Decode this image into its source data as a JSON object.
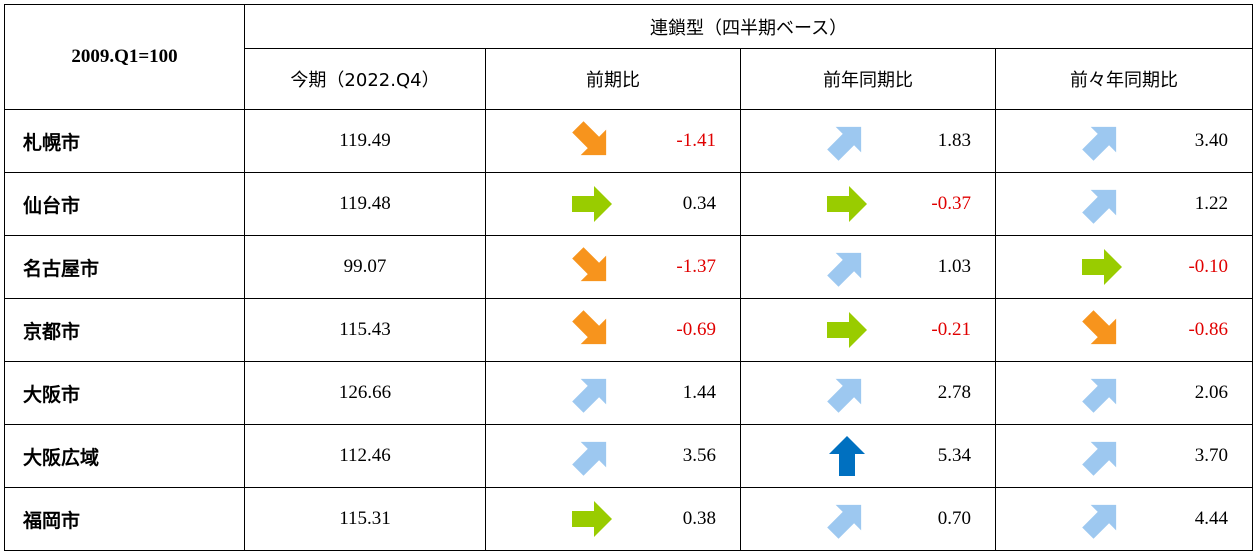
{
  "header": {
    "base": "2009.Q1=100",
    "group": "連鎖型（四半期ベース）",
    "col_current": "今期（2022.Q4）",
    "col_qoq": "前期比",
    "col_yoy": "前年同期比",
    "col_2y": "前々年同期比"
  },
  "rows": [
    {
      "city": "札幌市",
      "current": "119.49",
      "qoq": {
        "value": "-1.41",
        "arrow": "down-right-orange-arrow"
      },
      "yoy": {
        "value": "1.83",
        "arrow": "up-right-lightblue-arrow"
      },
      "y2": {
        "value": "3.40",
        "arrow": "up-right-lightblue-arrow"
      }
    },
    {
      "city": "仙台市",
      "current": "119.48",
      "qoq": {
        "value": "0.34",
        "arrow": "right-green-arrow"
      },
      "yoy": {
        "value": "-0.37",
        "arrow": "right-green-arrow"
      },
      "y2": {
        "value": "1.22",
        "arrow": "up-right-lightblue-arrow"
      }
    },
    {
      "city": "名古屋市",
      "current": "99.07",
      "qoq": {
        "value": "-1.37",
        "arrow": "down-right-orange-arrow"
      },
      "yoy": {
        "value": "1.03",
        "arrow": "up-right-lightblue-arrow"
      },
      "y2": {
        "value": "-0.10",
        "arrow": "right-green-arrow"
      }
    },
    {
      "city": "京都市",
      "current": "115.43",
      "qoq": {
        "value": "-0.69",
        "arrow": "down-right-orange-arrow"
      },
      "yoy": {
        "value": "-0.21",
        "arrow": "right-green-arrow"
      },
      "y2": {
        "value": "-0.86",
        "arrow": "down-right-orange-arrow"
      }
    },
    {
      "city": "大阪市",
      "current": "126.66",
      "qoq": {
        "value": "1.44",
        "arrow": "up-right-lightblue-arrow"
      },
      "yoy": {
        "value": "2.78",
        "arrow": "up-right-lightblue-arrow"
      },
      "y2": {
        "value": "2.06",
        "arrow": "up-right-lightblue-arrow"
      }
    },
    {
      "city": "大阪広域",
      "current": "112.46",
      "qoq": {
        "value": "3.56",
        "arrow": "up-right-lightblue-arrow"
      },
      "yoy": {
        "value": "5.34",
        "arrow": "up-blue-arrow"
      },
      "y2": {
        "value": "3.70",
        "arrow": "up-right-lightblue-arrow"
      }
    },
    {
      "city": "福岡市",
      "current": "115.31",
      "qoq": {
        "value": "0.38",
        "arrow": "right-green-arrow"
      },
      "yoy": {
        "value": "0.70",
        "arrow": "up-right-lightblue-arrow"
      },
      "y2": {
        "value": "4.44",
        "arrow": "up-right-lightblue-arrow"
      }
    }
  ],
  "colors": {
    "negative": "#e00000",
    "orange": "#f7941d",
    "green": "#99cc00",
    "lightblue": "#9dc8f0",
    "blue": "#0070c0"
  }
}
